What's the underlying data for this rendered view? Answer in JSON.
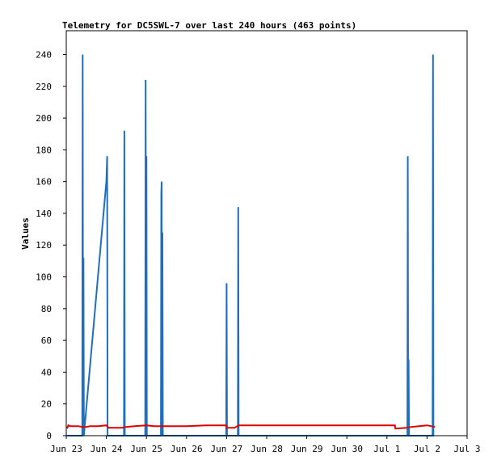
{
  "chart_data": {
    "type": "line",
    "title": "Telemetry for DC5SWL-7 over last 240 hours (463 points)",
    "xlabel": "",
    "ylabel": "Values",
    "x_ticks": [
      "Jun 23",
      "Jun 24",
      "Jun 25",
      "Jun 26",
      "Jun 27",
      "Jun 28",
      "Jun 29",
      "Jun 30",
      "Jul 1",
      "Jul 2",
      "Jul 3"
    ],
    "y_ticks": [
      0,
      20,
      40,
      60,
      80,
      100,
      120,
      140,
      160,
      180,
      200,
      220,
      240
    ],
    "xlim": [
      0,
      10
    ],
    "ylim": [
      0,
      255
    ],
    "grid": false,
    "colors": {
      "series_a": "#1f6fbf",
      "series_b": "#e00000"
    },
    "series": [
      {
        "x": [
          0.0,
          0.38,
          0.4,
          0.41,
          0.42,
          0.43,
          0.44,
          0.44,
          1.0,
          1.02,
          1.03,
          1.04,
          1.05,
          1.44,
          1.45,
          1.46,
          1.47,
          1.97,
          1.98,
          1.99,
          2.0,
          2.01,
          2.02,
          2.03,
          2.04,
          2.05,
          2.36,
          2.37,
          2.38,
          2.39,
          2.4,
          2.41,
          2.42,
          2.43,
          3.99,
          4.0,
          4.01,
          4.02,
          4.28,
          4.29,
          4.3,
          4.31,
          8.5,
          8.51,
          8.52,
          8.53,
          8.54,
          8.55,
          9.14,
          9.15,
          9.16,
          9.17
        ],
        "y": [
          0,
          0,
          0,
          240,
          0,
          112,
          0,
          0,
          160,
          176,
          0,
          0,
          0,
          0,
          192,
          0,
          0,
          0,
          224,
          0,
          176,
          0,
          0,
          0,
          0,
          0,
          0,
          152,
          160,
          0,
          128,
          0,
          0,
          0,
          0,
          96,
          0,
          0,
          0,
          144,
          0,
          0,
          0,
          0,
          176,
          0,
          48,
          0,
          0,
          240,
          0,
          0
        ]
      },
      {
        "x": [
          0.02,
          0.05,
          0.1,
          0.2,
          0.3,
          0.4,
          0.5,
          0.6,
          0.8,
          1.0,
          1.05,
          1.1,
          1.4,
          1.5,
          1.7,
          2.0,
          2.2,
          2.5,
          3.0,
          3.5,
          3.98,
          4.0,
          4.2,
          4.3,
          4.5,
          5.0,
          6.0,
          7.0,
          8.0,
          8.2,
          8.21,
          8.5,
          8.6,
          8.8,
          9.0,
          9.2
        ],
        "y": [
          4.5,
          6.5,
          6,
          6,
          6,
          5.5,
          5.5,
          6,
          6,
          6.5,
          5,
          5,
          5,
          5.5,
          6,
          6.5,
          6,
          6,
          6,
          6.5,
          6.5,
          5,
          5,
          6.5,
          6.5,
          6.5,
          6.5,
          6.5,
          6.5,
          6.5,
          4.5,
          5,
          5.5,
          6,
          6.5,
          5.5
        ]
      }
    ]
  }
}
